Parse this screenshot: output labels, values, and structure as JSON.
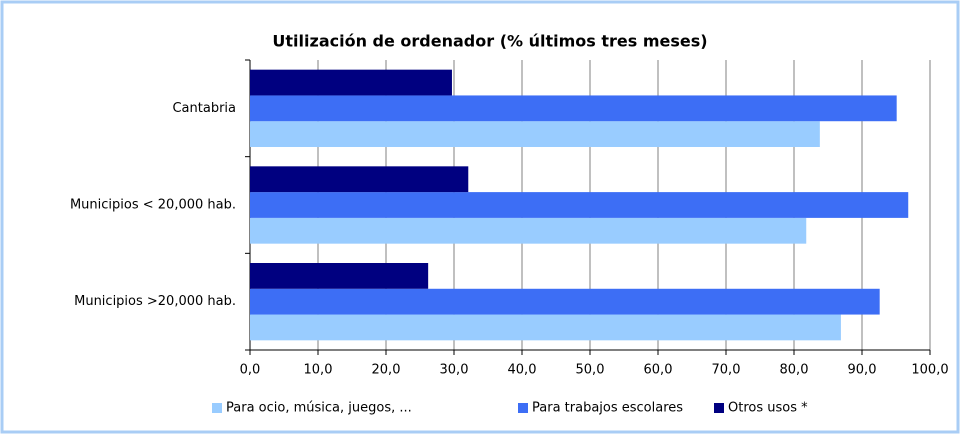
{
  "chart_data": {
    "type": "hbar",
    "title": "Utilización de ordenador (% últimos tres meses)",
    "categories": [
      "Cantabria",
      "Municipios < 20,000 hab.",
      "Municipios >20,000 hab."
    ],
    "series": [
      {
        "name": "Para ocio, música, juegos, ...",
        "color": "#99ccff",
        "values": [
          83.8,
          81.8,
          86.9
        ]
      },
      {
        "name": "Para trabajos escolares",
        "color": "#3d6ef5",
        "values": [
          95.1,
          96.8,
          92.6
        ]
      },
      {
        "name": "Otros usos *",
        "color": "#000080",
        "values": [
          29.7,
          32.1,
          26.2
        ]
      }
    ],
    "xlim": [
      0,
      100
    ],
    "xticks": [
      {
        "value": 0,
        "label": "0,0"
      },
      {
        "value": 10,
        "label": "10,0"
      },
      {
        "value": 20,
        "label": "20,0"
      },
      {
        "value": 30,
        "label": "30,0"
      },
      {
        "value": 40,
        "label": "40,0"
      },
      {
        "value": 50,
        "label": "50,0"
      },
      {
        "value": 60,
        "label": "60,0"
      },
      {
        "value": 70,
        "label": "70,0"
      },
      {
        "value": 80,
        "label": "80,0"
      },
      {
        "value": 90,
        "label": "90,0"
      },
      {
        "value": 100,
        "label": "100,0"
      }
    ],
    "grid": true,
    "legend": "bottom"
  }
}
